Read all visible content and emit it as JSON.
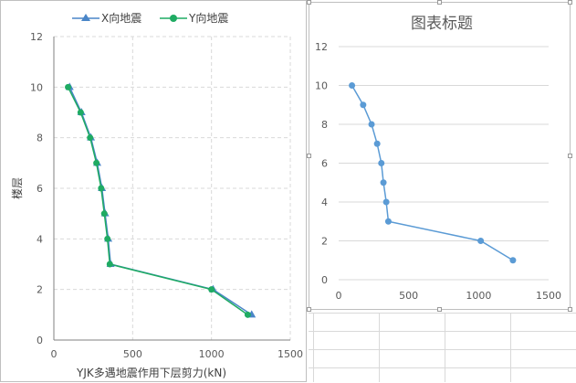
{
  "chart_data": [
    {
      "type": "scatter",
      "title": "",
      "xlabel": "YJK多遇地震作用下层剪力(kN)",
      "ylabel": "楼层",
      "xlim": [
        0,
        1500
      ],
      "ylim": [
        0,
        12
      ],
      "xticks": [
        "0",
        "500",
        "1000",
        "1500"
      ],
      "yticks": [
        "0",
        "2",
        "4",
        "6",
        "8",
        "10",
        "12"
      ],
      "grid": "dashed",
      "legend": "top",
      "series": [
        {
          "name": "X向地震",
          "color": "#4a86c8",
          "marker": "triangle",
          "points": [
            [
              100,
              10
            ],
            [
              175,
              9
            ],
            [
              235,
              8
            ],
            [
              275,
              7
            ],
            [
              305,
              6
            ],
            [
              325,
              5
            ],
            [
              345,
              4
            ],
            [
              360,
              3
            ],
            [
              1010,
              2
            ],
            [
              1255,
              1
            ]
          ]
        },
        {
          "name": "Y向地震",
          "color": "#1fab63",
          "marker": "circle",
          "points": [
            [
              90,
              10
            ],
            [
              170,
              9
            ],
            [
              230,
              8
            ],
            [
              270,
              7
            ],
            [
              300,
              6
            ],
            [
              320,
              5
            ],
            [
              340,
              4
            ],
            [
              355,
              3
            ],
            [
              1000,
              2
            ],
            [
              1230,
              1
            ]
          ]
        }
      ]
    },
    {
      "type": "scatter",
      "title": "图表标题",
      "xlabel": "",
      "ylabel": "",
      "xlim": [
        0,
        1500
      ],
      "ylim": [
        0,
        12
      ],
      "xticks": [
        "0",
        "500",
        "1000",
        "1500"
      ],
      "yticks": [
        "0",
        "2",
        "4",
        "6",
        "8",
        "10",
        "12"
      ],
      "grid": "horizontal",
      "legend": "none",
      "series": [
        {
          "color": "#5b9bd5",
          "marker": "circle",
          "points": [
            [
              95,
              10
            ],
            [
              175,
              9
            ],
            [
              235,
              8
            ],
            [
              275,
              7
            ],
            [
              305,
              6
            ],
            [
              320,
              5
            ],
            [
              340,
              4
            ],
            [
              355,
              3
            ],
            [
              1015,
              2
            ],
            [
              1245,
              1
            ]
          ]
        }
      ]
    }
  ]
}
